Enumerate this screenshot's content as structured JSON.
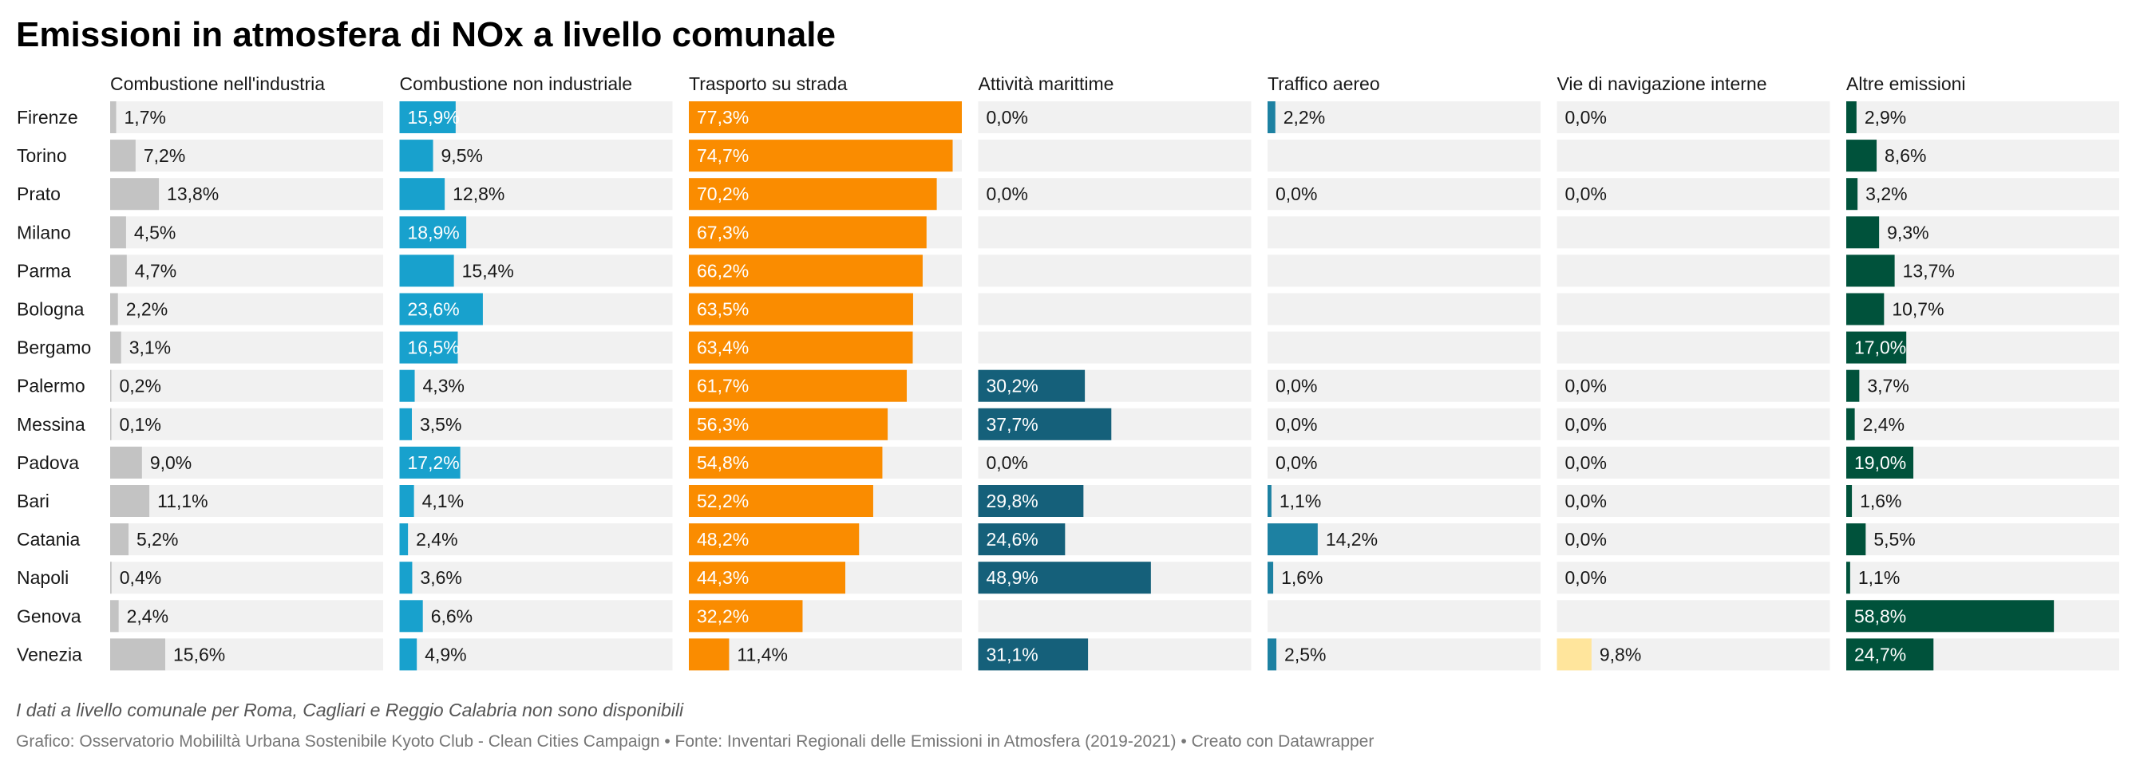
{
  "title": "Emissioni in atmosfera di NOx a livello comunale",
  "footnote": "I dati a livello comunale per Roma, Cagliari e Reggio Calabria non sono disponibili",
  "credits": "Grafico: Osservatorio Mobililtà Urbana Sostenibile Kyoto Club - Clean Cities Campaign • Fonte: Inventari Regionali delle Emissioni in Atmosfera (2019-2021) • Creato con Datawrapper",
  "chart_data": {
    "type": "bar",
    "orientation": "horizontal",
    "layout": "small-multiples",
    "unit": "%",
    "xlim": [
      0,
      77.3
    ],
    "categories": [
      "Firenze",
      "Torino",
      "Prato",
      "Milano",
      "Parma",
      "Bologna",
      "Bergamo",
      "Palermo",
      "Messina",
      "Padova",
      "Bari",
      "Catania",
      "Napoli",
      "Genova",
      "Venezia"
    ],
    "series": [
      {
        "name": "Combustione nell'industria",
        "color": "#c3c3c3",
        "values": [
          1.7,
          7.2,
          13.8,
          4.5,
          4.7,
          2.2,
          3.1,
          0.2,
          0.1,
          9.0,
          11.1,
          5.2,
          0.4,
          2.4,
          15.6
        ]
      },
      {
        "name": "Combustione non industriale",
        "color": "#18a1cd",
        "values": [
          15.9,
          9.5,
          12.8,
          18.9,
          15.4,
          23.6,
          16.5,
          4.3,
          3.5,
          17.2,
          4.1,
          2.4,
          3.6,
          6.6,
          4.9
        ]
      },
      {
        "name": "Trasporto su strada",
        "color": "#fa8c00",
        "values": [
          77.3,
          74.7,
          70.2,
          67.3,
          66.2,
          63.5,
          63.4,
          61.7,
          56.3,
          54.8,
          52.2,
          48.2,
          44.3,
          32.2,
          11.4
        ]
      },
      {
        "name": "Attività marittime",
        "color": "#15607a",
        "values": [
          0.0,
          null,
          0.0,
          null,
          null,
          null,
          null,
          30.2,
          37.7,
          0.0,
          29.8,
          24.6,
          48.9,
          null,
          31.1
        ]
      },
      {
        "name": "Traffico aereo",
        "color": "#1d81a2",
        "values": [
          2.2,
          null,
          0.0,
          null,
          null,
          null,
          null,
          0.0,
          0.0,
          0.0,
          1.1,
          14.2,
          1.6,
          null,
          2.5
        ]
      },
      {
        "name": "Vie di navigazione interne",
        "color": "#ffe59c",
        "values": [
          0.0,
          null,
          0.0,
          null,
          null,
          null,
          null,
          0.0,
          0.0,
          0.0,
          0.0,
          0.0,
          0.0,
          null,
          9.8
        ]
      },
      {
        "name": "Altre emissioni",
        "color": "#00523b",
        "values": [
          2.9,
          8.6,
          3.2,
          9.3,
          13.7,
          10.7,
          17.0,
          3.7,
          2.4,
          19.0,
          1.6,
          5.5,
          1.1,
          58.8,
          24.7
        ]
      }
    ]
  }
}
